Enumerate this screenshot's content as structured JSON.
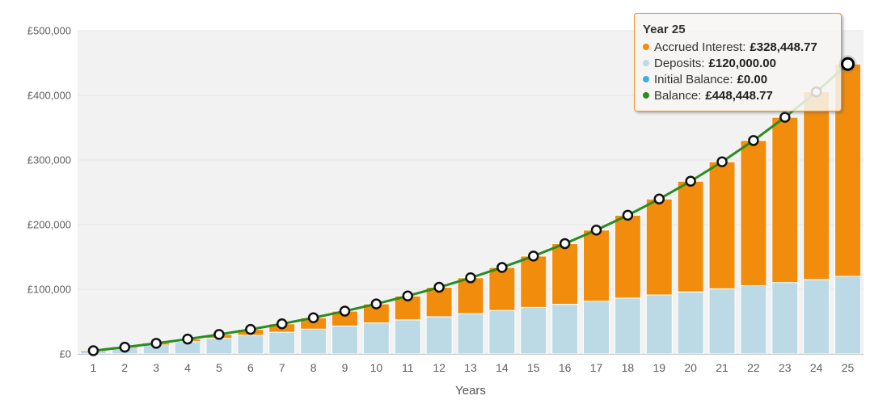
{
  "chart_data": {
    "type": "bar",
    "variant": "stacked-columns-with-line-overlay",
    "title": "",
    "xlabel": "Years",
    "ylabel": "",
    "x": [
      1,
      2,
      3,
      4,
      5,
      6,
      7,
      8,
      9,
      10,
      11,
      12,
      13,
      14,
      15,
      16,
      17,
      18,
      19,
      20,
      21,
      22,
      23,
      24,
      25
    ],
    "ylim": [
      0,
      500000
    ],
    "grid": true,
    "legend_position": "none",
    "y_ticks": [
      {
        "value": 0,
        "label": "£0"
      },
      {
        "value": 100000,
        "label": "£100,000"
      },
      {
        "value": 200000,
        "label": "£200,000"
      },
      {
        "value": 300000,
        "label": "£300,000"
      },
      {
        "value": 400000,
        "label": "£400,000"
      },
      {
        "value": 500000,
        "label": "£500,000"
      }
    ],
    "series": [
      {
        "name": "Deposits",
        "type": "bar",
        "stacked": true,
        "color": "#BCDAE6",
        "values": [
          4800,
          9600,
          14400,
          19200,
          24000,
          28800,
          33600,
          38400,
          43200,
          48000,
          52800,
          57600,
          62400,
          67200,
          72000,
          76800,
          81600,
          86400,
          91200,
          96000,
          100800,
          105600,
          110400,
          115200,
          120000
        ]
      },
      {
        "name": "Accrued Interest",
        "type": "bar",
        "stacked": true,
        "color": "#F28C0D",
        "values": [
          203.03,
          875.4,
          2061.1,
          3808.34,
          6169.79,
          9202.98,
          12970.95,
          17542.61,
          22993.44,
          29405.9,
          36870.21,
          45484.88,
          55357.98,
          66607.53,
          79362.62,
          93764.51,
          109967.68,
          128141.08,
          148469.54,
          171155.22,
          196419.25,
          224503.49,
          255672.49,
          290215.63,
          328448.77
        ]
      },
      {
        "name": "Initial Balance",
        "type": "bar",
        "stacked": true,
        "color": "#3EACE0",
        "values": [
          0,
          0,
          0,
          0,
          0,
          0,
          0,
          0,
          0,
          0,
          0,
          0,
          0,
          0,
          0,
          0,
          0,
          0,
          0,
          0,
          0,
          0,
          0,
          0,
          0
        ]
      },
      {
        "name": "Balance",
        "type": "line",
        "color": "#2B8C21",
        "values": [
          5003.03,
          10475.4,
          16461.1,
          23008.34,
          30169.79,
          38002.98,
          46570.95,
          55942.61,
          66193.44,
          77405.9,
          89670.21,
          103084.88,
          117757.98,
          133807.53,
          151362.62,
          170564.51,
          191567.68,
          214541.08,
          239669.54,
          267155.22,
          297219.25,
          330103.49,
          366072.49,
          405415.63,
          448448.77
        ]
      }
    ],
    "hovered_point": {
      "x": 25,
      "series": "Balance",
      "value": 448448.77
    }
  },
  "tooltip": {
    "title": "Year 25",
    "rows": [
      {
        "label": "Accrued Interest:",
        "value": "£328,448.77",
        "color": "#F28C0D"
      },
      {
        "label": "Deposits:",
        "value": "£120,000.00",
        "color": "#BCDAE6"
      },
      {
        "label": "Initial Balance:",
        "value": "£0.00",
        "color": "#3EACE0"
      },
      {
        "label": "Balance:",
        "value": "£448,448.77",
        "color": "#2B8C21"
      }
    ]
  },
  "colors": {
    "deposits_bar": "#BCDAE6",
    "accrued_interest_bar": "#F28C0D",
    "initial_balance": "#3EACE0",
    "balance_line": "#2B8C21",
    "plot_background": "#f2f2f2",
    "gridline": "#e6e6e6",
    "axis_line": "#c9c9c9",
    "axis_text": "#606060",
    "bar_border": "#ffffff",
    "marker_fill": "#ffffff",
    "marker_stroke": "#111111",
    "tooltip_border": "#F29023",
    "hover_halo": "#808080"
  }
}
